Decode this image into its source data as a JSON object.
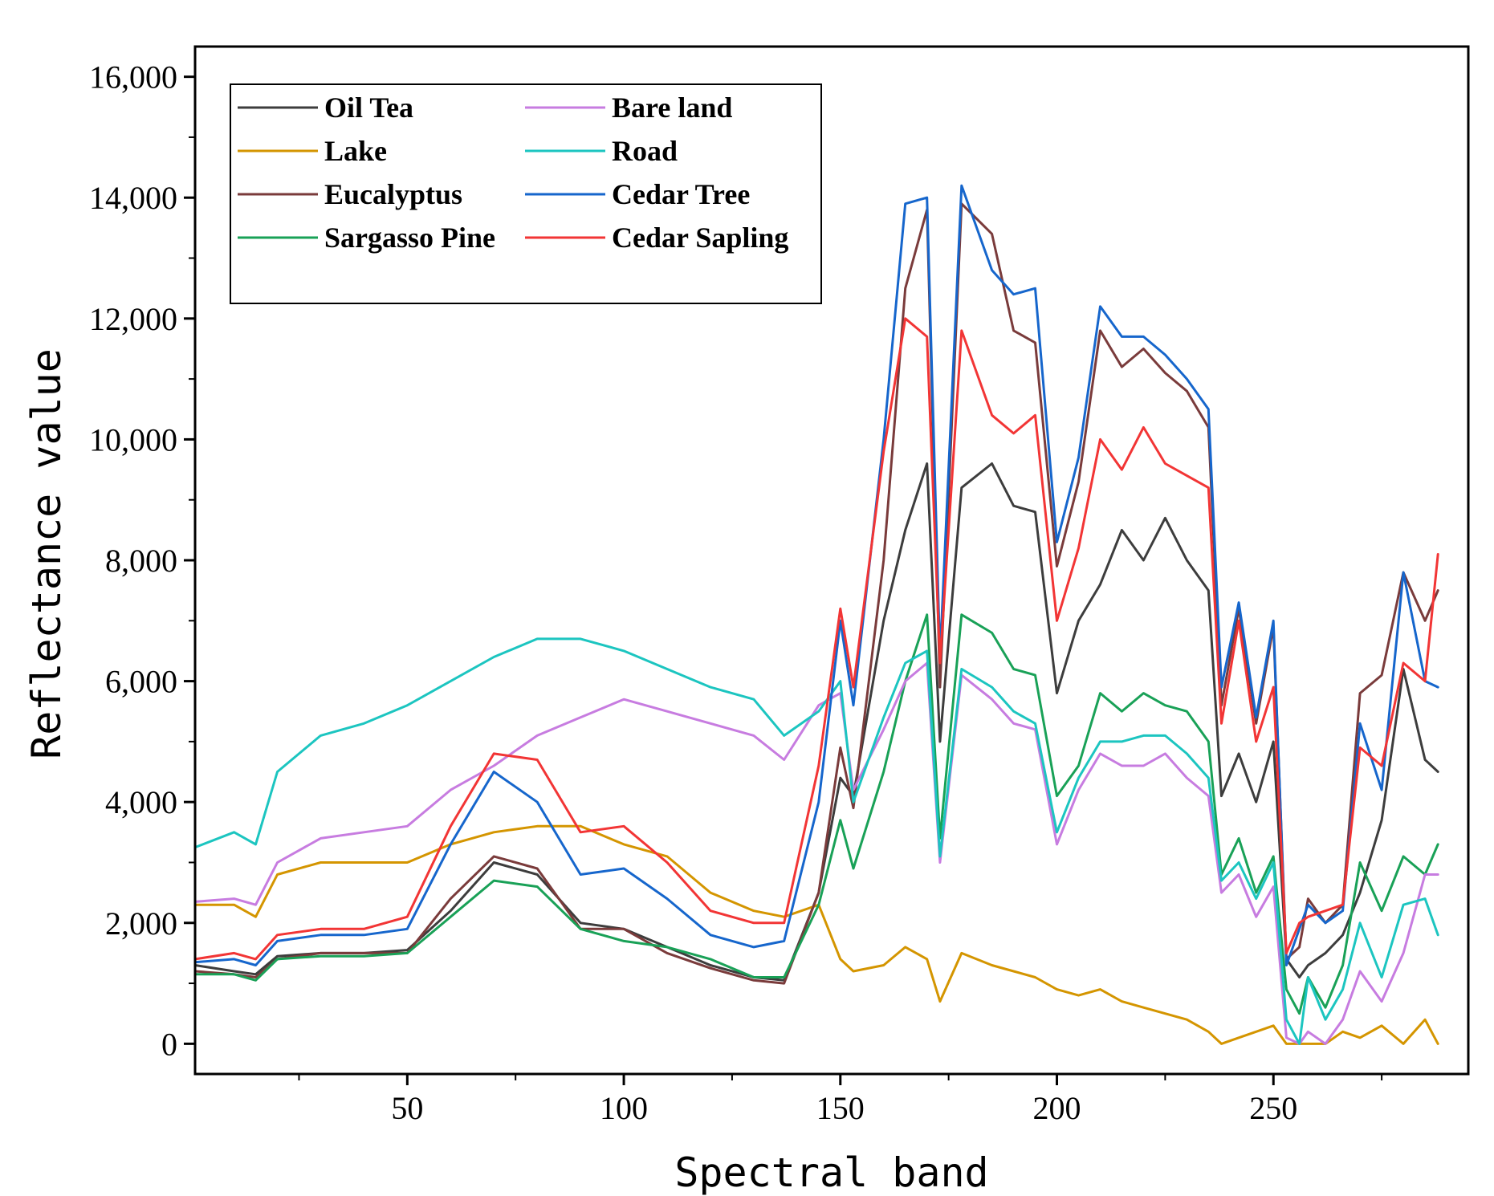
{
  "chart_data": {
    "type": "line",
    "title": "",
    "xlabel": "Spectral band",
    "ylabel": "Reflectance value",
    "xlim": [
      1,
      295
    ],
    "ylim": [
      -500,
      16500
    ],
    "xticks": [
      50,
      100,
      150,
      200,
      250
    ],
    "xtick_labels": [
      "50",
      "100",
      "150",
      "200",
      "250"
    ],
    "yticks": [
      0,
      2000,
      4000,
      6000,
      8000,
      10000,
      12000,
      14000,
      16000
    ],
    "ytick_labels": [
      "0",
      "2,000",
      "4,000",
      "6,000",
      "8,000",
      "10,000",
      "12,000",
      "14,000",
      "16,000"
    ],
    "grid": false,
    "legend_position": "top-left",
    "x": [
      1,
      10,
      15,
      20,
      30,
      40,
      50,
      60,
      70,
      80,
      90,
      100,
      110,
      120,
      130,
      137,
      145,
      150,
      153,
      160,
      165,
      170,
      173,
      178,
      185,
      190,
      195,
      200,
      205,
      210,
      215,
      220,
      225,
      230,
      235,
      238,
      242,
      246,
      250,
      253,
      256,
      258,
      262,
      266,
      270,
      275,
      280,
      285,
      288
    ],
    "series": [
      {
        "name": "Oil Tea",
        "color": "#3d3d3d",
        "values": [
          1300,
          1200,
          1150,
          1450,
          1500,
          1500,
          1550,
          2200,
          3000,
          2800,
          2000,
          1900,
          1600,
          1300,
          1100,
          1050,
          2500,
          4400,
          4100,
          7000,
          8500,
          9600,
          5000,
          9200,
          9600,
          8900,
          8800,
          5800,
          7000,
          7600,
          8500,
          8000,
          8700,
          8000,
          7500,
          4100,
          4800,
          4000,
          5000,
          1400,
          1100,
          1300,
          1500,
          1800,
          2500,
          3700,
          6200,
          4700,
          4500
        ]
      },
      {
        "name": "Lake",
        "color": "#d49500",
        "values": [
          2300,
          2300,
          2100,
          2800,
          3000,
          3000,
          3000,
          3300,
          3500,
          3600,
          3600,
          3300,
          3100,
          2500,
          2200,
          2100,
          2300,
          1400,
          1200,
          1300,
          1600,
          1400,
          700,
          1500,
          1300,
          1200,
          1100,
          900,
          800,
          900,
          700,
          600,
          500,
          400,
          200,
          0,
          100,
          200,
          300,
          0,
          0,
          0,
          0,
          200,
          100,
          300,
          0,
          400,
          0
        ]
      },
      {
        "name": "Eucalyptus",
        "color": "#7a3b3b",
        "values": [
          1200,
          1150,
          1100,
          1400,
          1500,
          1500,
          1500,
          2400,
          3100,
          2900,
          1900,
          1900,
          1500,
          1250,
          1050,
          1000,
          2500,
          4900,
          3900,
          8000,
          12500,
          13800,
          5900,
          13900,
          13400,
          11800,
          11600,
          7900,
          9300,
          11800,
          11200,
          11500,
          11100,
          10800,
          10200,
          5600,
          7200,
          5300,
          6900,
          1400,
          1600,
          2400,
          2000,
          2300,
          5800,
          6100,
          7800,
          7000,
          7500
        ]
      },
      {
        "name": "Sargasso Pine",
        "color": "#19a157",
        "values": [
          1150,
          1150,
          1050,
          1400,
          1450,
          1450,
          1500,
          2100,
          2700,
          2600,
          1900,
          1700,
          1600,
          1400,
          1100,
          1100,
          2300,
          3700,
          2900,
          4500,
          6000,
          7100,
          3400,
          7100,
          6800,
          6200,
          6100,
          4100,
          4600,
          5800,
          5500,
          5800,
          5600,
          5500,
          5000,
          2800,
          3400,
          2500,
          3100,
          900,
          500,
          1100,
          600,
          1300,
          3000,
          2200,
          3100,
          2800,
          3300
        ]
      },
      {
        "name": "Bare land",
        "color": "#c77ce0",
        "values": [
          2350,
          2400,
          2300,
          3000,
          3400,
          3500,
          3600,
          4200,
          4600,
          5100,
          5400,
          5700,
          5500,
          5300,
          5100,
          4700,
          5600,
          5800,
          4200,
          5200,
          6000,
          6300,
          3000,
          6100,
          5700,
          5300,
          5200,
          3300,
          4200,
          4800,
          4600,
          4600,
          4800,
          4400,
          4100,
          2500,
          2800,
          2100,
          2600,
          100,
          0,
          200,
          0,
          400,
          1200,
          700,
          1500,
          2800,
          2800
        ]
      },
      {
        "name": "Road",
        "color": "#1cc5c0",
        "values": [
          3250,
          3500,
          3300,
          4500,
          5100,
          5300,
          5600,
          6000,
          6400,
          6700,
          6700,
          6500,
          6200,
          5900,
          5700,
          5100,
          5500,
          6000,
          4000,
          5400,
          6300,
          6500,
          3100,
          6200,
          5900,
          5500,
          5300,
          3500,
          4400,
          5000,
          5000,
          5100,
          5100,
          4800,
          4400,
          2700,
          3000,
          2400,
          3000,
          400,
          0,
          1100,
          400,
          900,
          2000,
          1100,
          2300,
          2400,
          1800
        ]
      },
      {
        "name": "Cedar Tree",
        "color": "#1666cc",
        "values": [
          1350,
          1400,
          1300,
          1700,
          1800,
          1800,
          1900,
          3300,
          4500,
          4000,
          2800,
          2900,
          2400,
          1800,
          1600,
          1700,
          4000,
          7000,
          5600,
          10000,
          13900,
          14000,
          6400,
          14200,
          12800,
          12400,
          12500,
          8300,
          9700,
          12200,
          11700,
          11700,
          11400,
          11000,
          10500,
          5900,
          7300,
          5400,
          7000,
          1300,
          1900,
          2300,
          2000,
          2200,
          5300,
          4200,
          7800,
          6000,
          5900
        ]
      },
      {
        "name": "Cedar Sapling",
        "color": "#f23535",
        "values": [
          1400,
          1500,
          1400,
          1800,
          1900,
          1900,
          2100,
          3600,
          4800,
          4700,
          3500,
          3600,
          3000,
          2200,
          2000,
          2000,
          4600,
          7200,
          5900,
          9800,
          12000,
          11700,
          6300,
          11800,
          10400,
          10100,
          10400,
          7000,
          8200,
          10000,
          9500,
          10200,
          9600,
          9400,
          9200,
          5300,
          7000,
          5000,
          5900,
          1500,
          2000,
          2100,
          2200,
          2300,
          4900,
          4600,
          6300,
          6000,
          8100
        ]
      }
    ]
  }
}
